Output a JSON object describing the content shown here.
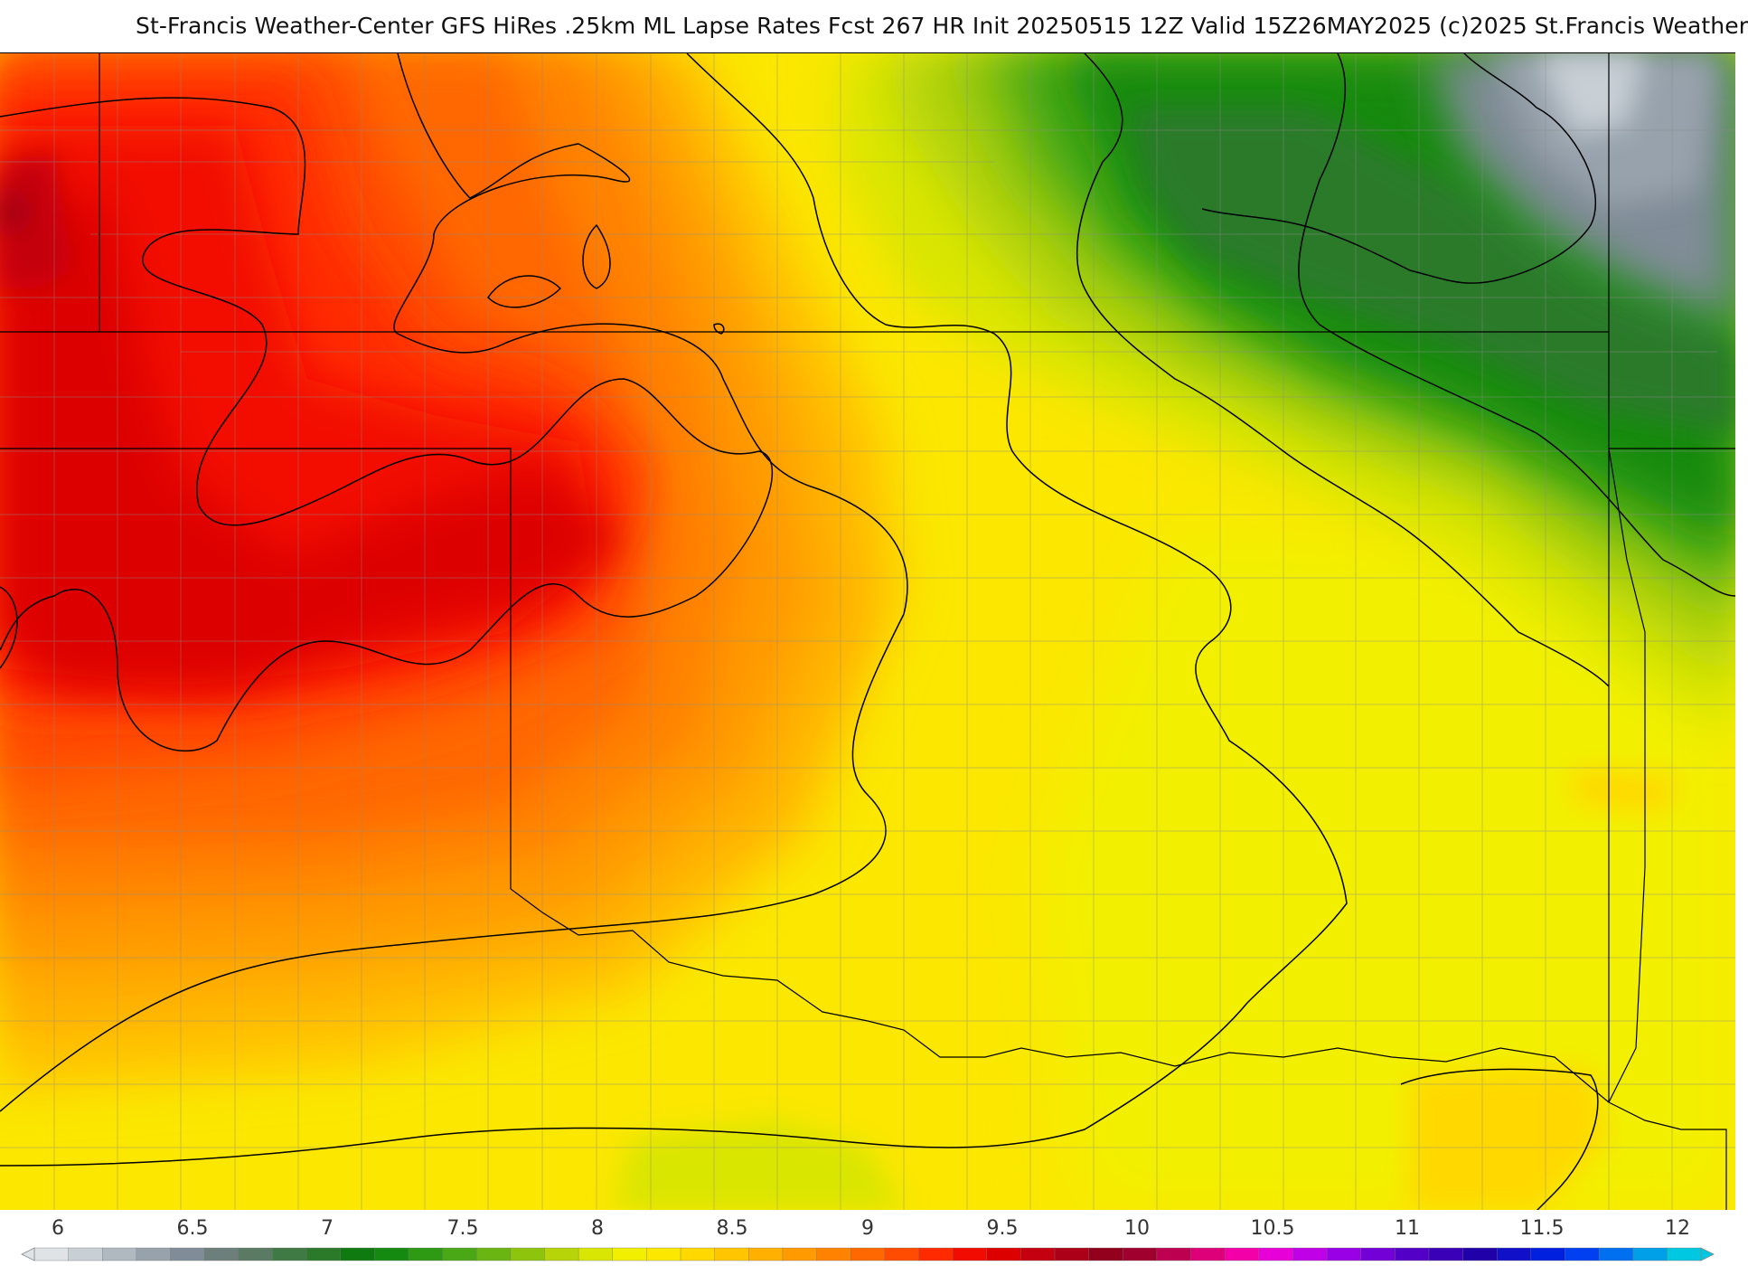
{
  "header": {
    "title": "St-Francis Weather-Center GFS HiRes .25km ML Lapse Rates  Fcst 267 HR Init 20250515 12Z  Valid 15Z26MAY2025    (c)2025 St.Francis Weather"
  },
  "map": {
    "field": "ML Lapse Rates",
    "color_stops": [
      "#dfe3e6",
      "#c8cfd5",
      "#b0b8c0",
      "#98a2ac",
      "#808c97",
      "#6c7f7a",
      "#5a7a64",
      "#3f7a45",
      "#2a7a2a",
      "#0f7a0f",
      "#158a10",
      "#2e9a14",
      "#4aa816",
      "#6bb512",
      "#8fc40d",
      "#b6d408",
      "#d9e604",
      "#f2f000",
      "#fbe700",
      "#ffd800",
      "#ffc600",
      "#ffb000",
      "#ff9a00",
      "#ff8200",
      "#ff6800",
      "#ff4c00",
      "#ff2a00",
      "#f20b00",
      "#dc0000",
      "#c40010",
      "#ab0018",
      "#92001e",
      "#a0002e",
      "#be0050",
      "#de0078",
      "#f400a8",
      "#e800d8",
      "#c000e6",
      "#9a00e6",
      "#7400d8",
      "#5200c8",
      "#3a00b8",
      "#2000a8",
      "#1010c8",
      "#0020e0",
      "#0040f0",
      "#0070f0",
      "#00a0e8",
      "#00c8e0"
    ]
  },
  "legend": {
    "ticks": [
      "6",
      "6.5",
      "7",
      "7.5",
      "8",
      "8.5",
      "9",
      "9.5",
      "10",
      "10.5",
      "11",
      "11.5",
      "12"
    ]
  }
}
